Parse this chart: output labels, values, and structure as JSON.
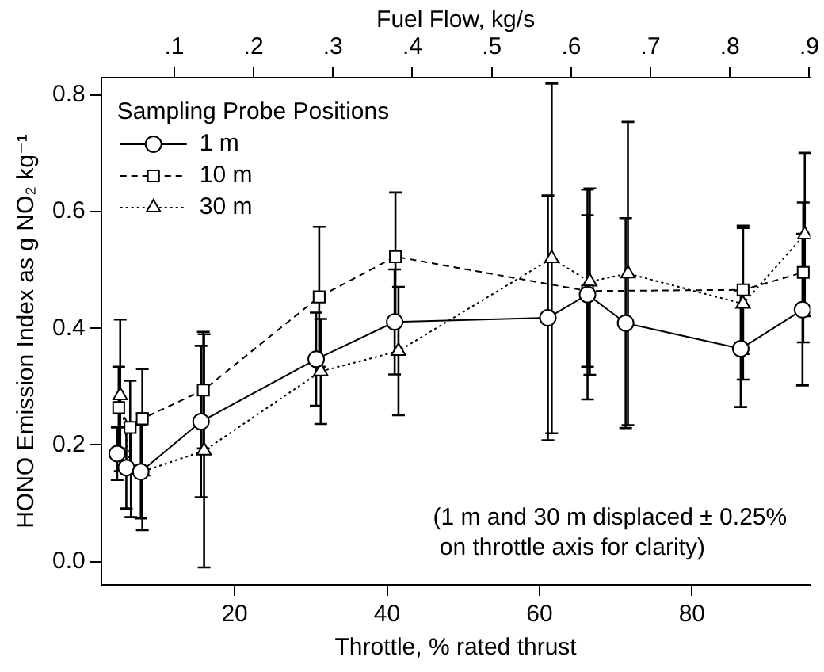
{
  "chart_data": {
    "type": "line",
    "xlabel": "Throttle, % rated thrust",
    "ylabel": "HONO Emission Index as g NO₂ kg⁻¹",
    "x2label": "Fuel Flow, kg/s",
    "legend_title": "Sampling Probe Positions",
    "legend": "top left",
    "grid": false,
    "xlim": [
      2.5,
      95.5
    ],
    "xticks": [
      20,
      40,
      60,
      80
    ],
    "x2lim": [
      0.008,
      0.901
    ],
    "x2ticks": [
      {
        "value": 0.1,
        "label": ".1"
      },
      {
        "value": 0.2,
        "label": ".2"
      },
      {
        "value": 0.3,
        "label": ".3"
      },
      {
        "value": 0.4,
        "label": ".4"
      },
      {
        "value": 0.5,
        "label": ".5"
      },
      {
        "value": 0.6,
        "label": ".6"
      },
      {
        "value": 0.7,
        "label": ".7"
      },
      {
        "value": 0.8,
        "label": ".8"
      },
      {
        "value": 0.9,
        "label": ".9"
      }
    ],
    "ylim": [
      -0.04,
      0.83
    ],
    "yticks": [
      {
        "value": 0,
        "label": "0.0"
      },
      {
        "value": 0.2,
        "label": "0.2"
      },
      {
        "value": 0.4,
        "label": "0.4"
      },
      {
        "value": 0.6,
        "label": "0.6"
      },
      {
        "value": 0.8,
        "label": "0.8"
      }
    ],
    "series": [
      {
        "name": "1 m",
        "color": "#000000",
        "marker": "circle",
        "line_style": "solid",
        "x": [
          4.6,
          5.8,
          7.7,
          15.6,
          30.7,
          41,
          61.1,
          66.3,
          71.3,
          86.4,
          94.5
        ],
        "values": [
          0.185,
          0.161,
          0.154,
          0.24,
          0.347,
          0.411,
          0.418,
          0.458,
          0.409,
          0.365,
          0.432
        ],
        "errors": [
          0.045,
          0.07,
          0.08,
          0.13,
          0.08,
          0.09,
          0.21,
          0.18,
          0.18,
          0.1,
          0.13
        ]
      },
      {
        "name": "10 m",
        "color": "#000000",
        "marker": "square",
        "line_style": "dashed",
        "x": [
          4.8,
          6.3,
          7.9,
          15.9,
          31.1,
          41.1,
          66.3,
          86.7,
          94.6
        ],
        "values": [
          0.264,
          0.23,
          0.245,
          0.294,
          0.454,
          0.523,
          0.464,
          0.466,
          0.496
        ],
        "errors": [
          0.07,
          0.08,
          0.085,
          0.1,
          0.12,
          0.11,
          0.13,
          0.11,
          0.12
        ]
      },
      {
        "name": "30 m",
        "color": "#000000",
        "marker": "triangle",
        "line_style": "dotted",
        "x": [
          5.0,
          6.4,
          7.9,
          16.0,
          31.3,
          41.5,
          61.6,
          66.6,
          71.6,
          86.7,
          94.8
        ],
        "values": [
          0.285,
          0.156,
          0.154,
          0.19,
          0.326,
          0.361,
          0.52,
          0.48,
          0.494,
          0.442,
          0.561
        ],
        "errors": [
          0.13,
          0.08,
          0.1,
          0.2,
          0.09,
          0.11,
          0.3,
          0.16,
          0.26,
          0.13,
          0.14
        ]
      }
    ],
    "annotations": [
      "(1 m and 30 m displaced ± 0.25%\n on throttle axis for clarity)"
    ]
  }
}
